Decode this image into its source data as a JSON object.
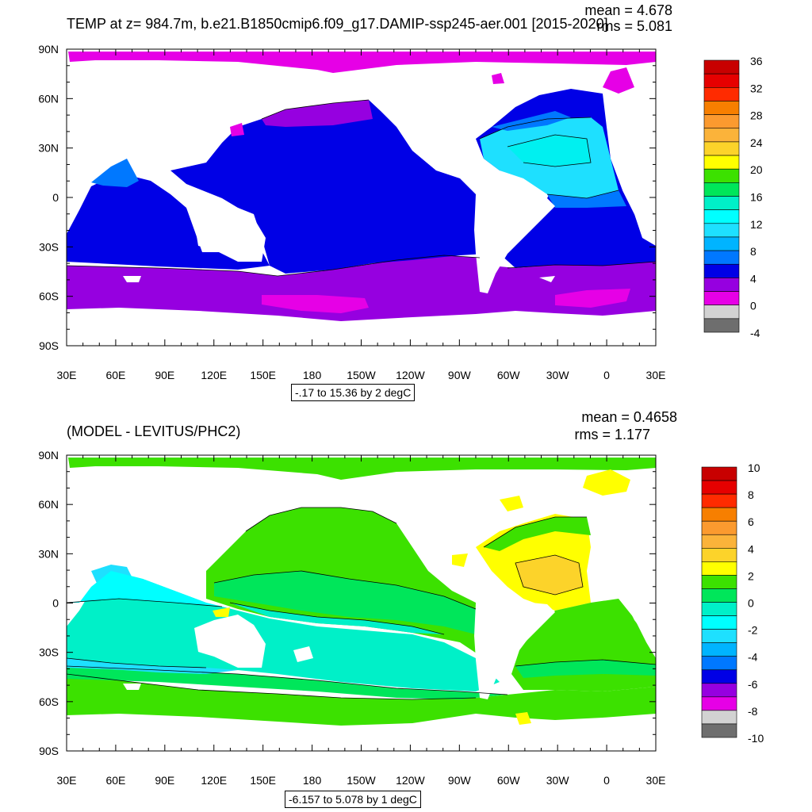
{
  "panels": [
    {
      "title": "TEMP at z= 984.7m, b.e21.B1850cmip6.f09_g17.DAMIP-ssp245-aer.001 [2015-2020]",
      "mean_label": "mean = 4.678",
      "rms_label": "rms = 5.081",
      "range_label": "-.17 to 15.36 by 2 degC",
      "colorbar_labels": [
        "36",
        "32",
        "28",
        "24",
        "20",
        "16",
        "12",
        "8",
        "4",
        "0",
        "-4"
      ]
    },
    {
      "title": "(MODEL - LEVITUS/PHC2)",
      "mean_label": "mean = 0.4658",
      "rms_label": "rms = 1.177",
      "range_label": "-6.157 to 5.078 by 1 degC",
      "colorbar_labels": [
        "10",
        "8",
        "6",
        "4",
        "2",
        "0",
        "-2",
        "-4",
        "-6",
        "-8",
        "-10"
      ]
    }
  ],
  "lat_labels": [
    "90N",
    "60N",
    "30N",
    "0",
    "30S",
    "60S",
    "90S"
  ],
  "lon_labels": [
    "30E",
    "60E",
    "90E",
    "120E",
    "150E",
    "180",
    "150W",
    "120W",
    "90W",
    "60W",
    "30W",
    "0",
    "30E"
  ],
  "colorbar_colors": [
    "#c80000",
    "#e60000",
    "#ff2b00",
    "#f77f00",
    "#fb9a2f",
    "#fbb33a",
    "#fcd32a",
    "#ffff00",
    "#3ce100",
    "#00e65a",
    "#00f0c8",
    "#00ffff",
    "#1ee0ff",
    "#00b4ff",
    "#0078ff",
    "#0000e6",
    "#9600e0",
    "#e600e6",
    "#d2d2d2",
    "#6e6e6e"
  ],
  "colors": {
    "land": "#ffffff",
    "contour": "#000000"
  }
}
